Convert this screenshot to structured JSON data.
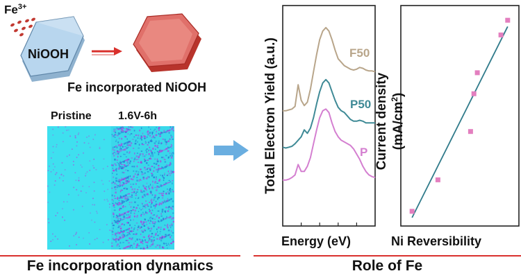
{
  "schematic": {
    "ion_label": "Fe",
    "ion_charge": "3+",
    "before_label": "NiOOH",
    "after_label": "Fe incorporated NiOOH"
  },
  "maps": {
    "left_label": "Pristine",
    "right_label": "1.6V-6h",
    "base_color": "#3ee0ef",
    "speckle_color": "#b040e0"
  },
  "captions": {
    "left": "Fe incorporation dynamics",
    "right": "Role of Fe"
  },
  "colors": {
    "arrow_blue": "#6aaee0",
    "arrow_red": "#d9302c",
    "divider_red": "#d9302c",
    "hex_blue": "#b8d6ee",
    "hex_red": "#e0706a",
    "fit_line": "#2f7a8a",
    "marker": "#e37fbf"
  },
  "chart_data": [
    {
      "type": "line",
      "title": "",
      "xlabel": "Energy (eV)",
      "ylabel": "Total Electron Yield (a.u.)",
      "x": [
        0,
        1,
        2,
        3,
        4,
        5,
        6,
        7,
        8,
        9,
        10,
        11,
        12,
        13,
        14,
        15,
        16,
        17,
        18,
        19,
        20,
        21,
        22,
        23,
        24,
        25,
        26,
        27,
        28,
        29,
        30
      ],
      "series": [
        {
          "name": "F50",
          "color": "#b8a58a",
          "values": [
            0.8,
            0.8,
            0.81,
            0.82,
            0.85,
            1.1,
            0.92,
            0.86,
            0.9,
            1.05,
            1.25,
            1.45,
            1.62,
            1.72,
            1.76,
            1.72,
            1.62,
            1.5,
            1.4,
            1.36,
            1.32,
            1.3,
            1.28,
            1.27,
            1.28,
            1.3,
            1.29,
            1.27,
            1.26,
            1.26,
            1.25
          ]
        },
        {
          "name": "P50",
          "color": "#3f8a96",
          "values": [
            0.38,
            0.37,
            0.38,
            0.39,
            0.42,
            0.46,
            0.5,
            0.58,
            0.54,
            0.6,
            0.72,
            0.88,
            1.02,
            1.12,
            1.16,
            1.12,
            1.02,
            0.92,
            0.84,
            0.8,
            0.78,
            0.74,
            0.7,
            0.68,
            0.68,
            0.69,
            0.68,
            0.66,
            0.66,
            0.66,
            0.66
          ]
        },
        {
          "name": "P",
          "color": "#d47fd0",
          "values": [
            0.0,
            0.0,
            0.01,
            0.03,
            0.06,
            0.18,
            0.1,
            0.1,
            0.16,
            0.26,
            0.42,
            0.58,
            0.72,
            0.8,
            0.82,
            0.78,
            0.66,
            0.56,
            0.5,
            0.46,
            0.44,
            0.42,
            0.4,
            0.36,
            0.3,
            0.24,
            0.16,
            0.1,
            0.06,
            0.04,
            0.03
          ]
        }
      ],
      "xticks": 4,
      "axis_ticks_labeled": false
    },
    {
      "type": "scatter",
      "title": "",
      "xlabel": "Ni Reversibility",
      "ylabel": "Current density (mA/cm2)",
      "x": [
        0.1,
        0.33,
        0.62,
        0.65,
        0.68,
        0.89,
        0.95
      ],
      "series": [
        {
          "name": "",
          "color": "#e37fbf",
          "values": [
            0.07,
            0.22,
            0.45,
            0.63,
            0.73,
            0.91,
            0.98
          ]
        }
      ],
      "fit": {
        "x": [
          0.1,
          0.95
        ],
        "y": [
          0.04,
          0.95
        ],
        "color": "#2f7a8a"
      },
      "xlim": [
        0,
        1.05
      ],
      "ylim": [
        0,
        1.05
      ],
      "axis_ticks_labeled": false
    }
  ]
}
